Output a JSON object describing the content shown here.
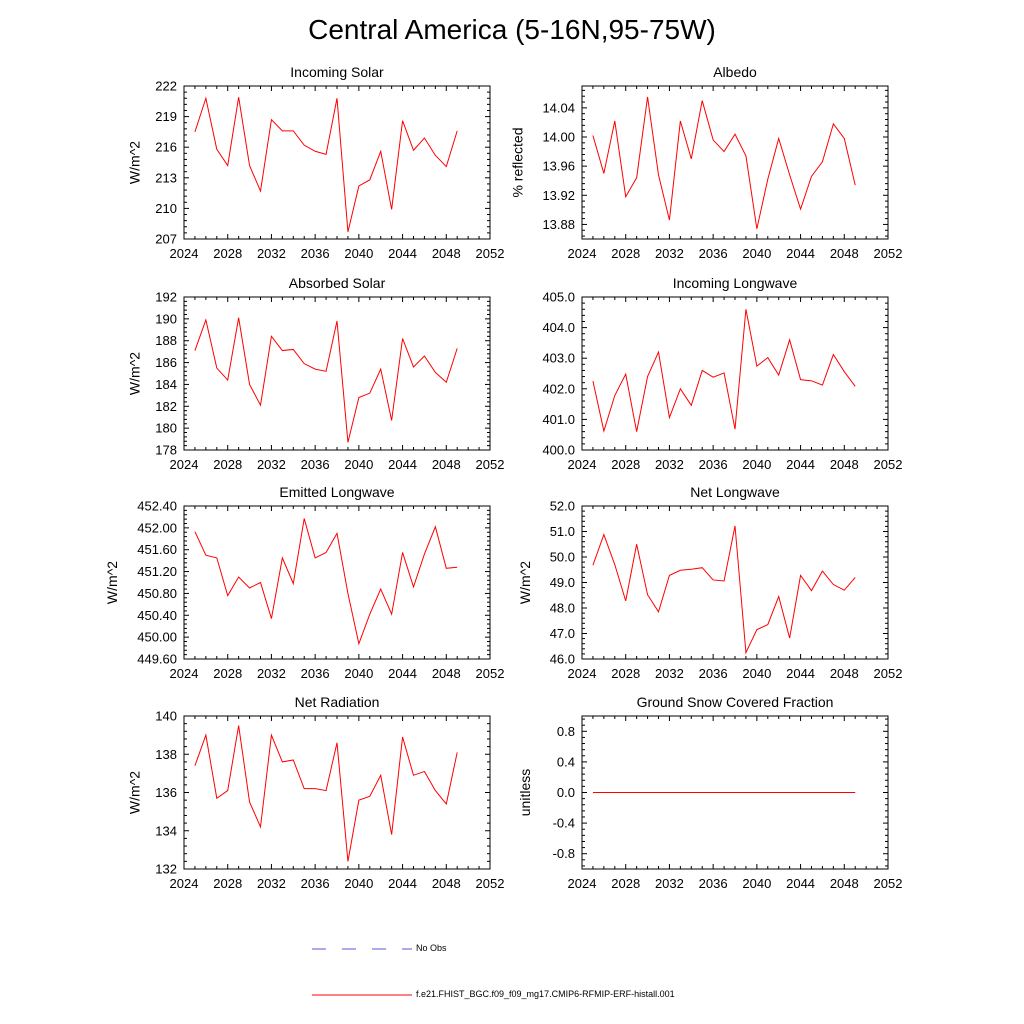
{
  "figure_title": "Central America (5-16N,95-75W)",
  "legend": {
    "obs_label": "No Obs",
    "model_label": "f.e21.FHIST_BGC.f09_f09_mg17.CMIP6-RFMIP-ERF-histall.001",
    "obs_color": "#5a5ad8",
    "model_color": "#ff0000"
  },
  "chart_data": [
    {
      "type": "line",
      "title": "Incoming Solar",
      "ylabel": "W/m^2",
      "xlim": [
        2024,
        2052
      ],
      "xticks": [
        "2024",
        "2028",
        "2032",
        "2036",
        "2040",
        "2044",
        "2048",
        "2052"
      ],
      "ylim": [
        207,
        222
      ],
      "yticks": [
        "207",
        "210",
        "213",
        "216",
        "219",
        "222"
      ],
      "x": [
        2025,
        2026,
        2027,
        2028,
        2029,
        2030,
        2031,
        2032,
        2033,
        2034,
        2035,
        2036,
        2037,
        2038,
        2039,
        2040,
        2041,
        2042,
        2043,
        2044,
        2045,
        2046,
        2047,
        2048,
        2049
      ],
      "series": [
        {
          "name": "f.e21.FHIST_BGC.f09_f09_mg17.CMIP6-RFMIP-ERF-histall.001",
          "values": [
            217.5,
            220.8,
            215.8,
            214.2,
            220.9,
            214.2,
            211.7,
            218.7,
            217.6,
            217.6,
            216.2,
            215.6,
            215.3,
            220.8,
            207.7,
            212.2,
            212.8,
            215.6,
            209.9,
            218.6,
            215.7,
            216.9,
            215.2,
            214.1,
            217.6
          ]
        }
      ]
    },
    {
      "type": "line",
      "title": "Albedo",
      "ylabel": "% reflected",
      "xlim": [
        2024,
        2052
      ],
      "xticks": [
        "2024",
        "2028",
        "2032",
        "2036",
        "2040",
        "2044",
        "2048",
        "2052"
      ],
      "ylim": [
        13.86,
        14.07
      ],
      "yticks": [
        "13.88",
        "13.92",
        "13.96",
        "14.00",
        "14.04"
      ],
      "x": [
        2025,
        2026,
        2027,
        2028,
        2029,
        2030,
        2031,
        2032,
        2033,
        2034,
        2035,
        2036,
        2037,
        2038,
        2039,
        2040,
        2041,
        2042,
        2043,
        2044,
        2045,
        2046,
        2047,
        2048,
        2049
      ],
      "series": [
        {
          "name": "f.e21.FHIST_BGC.f09_f09_mg17.CMIP6-RFMIP-ERF-histall.001",
          "values": [
            14.002,
            13.95,
            14.022,
            13.918,
            13.944,
            14.055,
            13.948,
            13.886,
            14.022,
            13.97,
            14.05,
            13.996,
            13.98,
            14.004,
            13.974,
            13.874,
            13.942,
            13.998,
            13.948,
            13.901,
            13.946,
            13.966,
            14.018,
            13.998,
            13.934
          ]
        }
      ]
    },
    {
      "type": "line",
      "title": "Absorbed Solar",
      "ylabel": "W/m^2",
      "xlim": [
        2024,
        2052
      ],
      "xticks": [
        "2024",
        "2028",
        "2032",
        "2036",
        "2040",
        "2044",
        "2048",
        "2052"
      ],
      "ylim": [
        178,
        192
      ],
      "yticks": [
        "178",
        "180",
        "182",
        "184",
        "186",
        "188",
        "190",
        "192"
      ],
      "x": [
        2025,
        2026,
        2027,
        2028,
        2029,
        2030,
        2031,
        2032,
        2033,
        2034,
        2035,
        2036,
        2037,
        2038,
        2039,
        2040,
        2041,
        2042,
        2043,
        2044,
        2045,
        2046,
        2047,
        2048,
        2049
      ],
      "series": [
        {
          "name": "f.e21.FHIST_BGC.f09_f09_mg17.CMIP6-RFMIP-ERF-histall.001",
          "values": [
            187.1,
            189.9,
            185.5,
            184.4,
            190.1,
            184.0,
            182.1,
            188.4,
            187.1,
            187.2,
            185.9,
            185.4,
            185.2,
            189.8,
            178.7,
            182.8,
            183.2,
            185.4,
            180.7,
            188.2,
            185.6,
            186.6,
            185.1,
            184.2,
            187.3
          ]
        }
      ]
    },
    {
      "type": "line",
      "title": "Incoming Longwave",
      "ylabel": "",
      "xlim": [
        2024,
        2052
      ],
      "xticks": [
        "2024",
        "2028",
        "2032",
        "2036",
        "2040",
        "2044",
        "2048",
        "2052"
      ],
      "ylim": [
        400.0,
        405.0
      ],
      "yticks": [
        "400.0",
        "401.0",
        "402.0",
        "403.0",
        "404.0",
        "405.0"
      ],
      "x": [
        2025,
        2026,
        2027,
        2028,
        2029,
        2030,
        2031,
        2032,
        2033,
        2034,
        2035,
        2036,
        2037,
        2038,
        2039,
        2040,
        2041,
        2042,
        2043,
        2044,
        2045,
        2046,
        2047,
        2048,
        2049
      ],
      "series": [
        {
          "name": "f.e21.FHIST_BGC.f09_f09_mg17.CMIP6-RFMIP-ERF-histall.001",
          "values": [
            402.25,
            400.62,
            401.78,
            402.48,
            400.6,
            402.4,
            403.2,
            401.06,
            402.0,
            401.46,
            402.6,
            402.38,
            402.52,
            400.68,
            404.6,
            402.74,
            403.02,
            402.45,
            403.6,
            402.3,
            402.26,
            402.12,
            403.12,
            402.56,
            402.08
          ]
        }
      ]
    },
    {
      "type": "line",
      "title": "Emitted Longwave",
      "ylabel": "W/m^2",
      "xlim": [
        2024,
        2052
      ],
      "xticks": [
        "2024",
        "2028",
        "2032",
        "2036",
        "2040",
        "2044",
        "2048",
        "2052"
      ],
      "ylim": [
        449.6,
        452.4
      ],
      "yticks": [
        "449.60",
        "450.00",
        "450.40",
        "450.80",
        "451.20",
        "451.60",
        "452.00",
        "452.40"
      ],
      "x": [
        2025,
        2026,
        2027,
        2028,
        2029,
        2030,
        2031,
        2032,
        2033,
        2034,
        2035,
        2036,
        2037,
        2038,
        2039,
        2040,
        2041,
        2042,
        2043,
        2044,
        2045,
        2046,
        2047,
        2048,
        2049
      ],
      "series": [
        {
          "name": "f.e21.FHIST_BGC.f09_f09_mg17.CMIP6-RFMIP-ERF-histall.001",
          "values": [
            451.93,
            451.5,
            451.45,
            450.76,
            451.1,
            450.9,
            451.0,
            450.34,
            451.45,
            450.98,
            452.17,
            451.45,
            451.55,
            451.9,
            450.8,
            449.88,
            450.42,
            450.88,
            450.42,
            451.55,
            450.92,
            451.52,
            452.02,
            451.26,
            451.28
          ]
        }
      ]
    },
    {
      "type": "line",
      "title": "Net Longwave",
      "ylabel": "W/m^2",
      "xlim": [
        2024,
        2052
      ],
      "xticks": [
        "2024",
        "2028",
        "2032",
        "2036",
        "2040",
        "2044",
        "2048",
        "2052"
      ],
      "ylim": [
        46.0,
        52.0
      ],
      "yticks": [
        "46.0",
        "47.0",
        "48.0",
        "49.0",
        "50.0",
        "51.0",
        "52.0"
      ],
      "x": [
        2025,
        2026,
        2027,
        2028,
        2029,
        2030,
        2031,
        2032,
        2033,
        2034,
        2035,
        2036,
        2037,
        2038,
        2039,
        2040,
        2041,
        2042,
        2043,
        2044,
        2045,
        2046,
        2047,
        2048,
        2049
      ],
      "series": [
        {
          "name": "f.e21.FHIST_BGC.f09_f09_mg17.CMIP6-RFMIP-ERF-histall.001",
          "values": [
            49.68,
            50.88,
            49.7,
            48.28,
            50.5,
            48.52,
            47.85,
            49.28,
            49.48,
            49.52,
            49.58,
            49.1,
            49.06,
            51.22,
            46.25,
            47.15,
            47.35,
            48.45,
            46.82,
            49.28,
            48.68,
            49.45,
            48.92,
            48.7,
            49.2
          ]
        }
      ]
    },
    {
      "type": "line",
      "title": "Net Radiation",
      "ylabel": "W/m^2",
      "xlim": [
        2024,
        2052
      ],
      "xticks": [
        "2024",
        "2028",
        "2032",
        "2036",
        "2040",
        "2044",
        "2048",
        "2052"
      ],
      "ylim": [
        132,
        140
      ],
      "yticks": [
        "132",
        "134",
        "136",
        "138",
        "140"
      ],
      "x": [
        2025,
        2026,
        2027,
        2028,
        2029,
        2030,
        2031,
        2032,
        2033,
        2034,
        2035,
        2036,
        2037,
        2038,
        2039,
        2040,
        2041,
        2042,
        2043,
        2044,
        2045,
        2046,
        2047,
        2048,
        2049
      ],
      "series": [
        {
          "name": "f.e21.FHIST_BGC.f09_f09_mg17.CMIP6-RFMIP-ERF-histall.001",
          "values": [
            137.4,
            139.0,
            135.7,
            136.1,
            139.5,
            135.5,
            134.2,
            139.0,
            137.6,
            137.7,
            136.2,
            136.2,
            136.1,
            138.6,
            132.4,
            135.6,
            135.8,
            136.9,
            133.8,
            138.9,
            136.9,
            137.1,
            136.1,
            135.4,
            138.1
          ]
        }
      ]
    },
    {
      "type": "line",
      "title": "Ground Snow Covered Fraction",
      "ylabel": "unitless",
      "xlim": [
        2024,
        2052
      ],
      "xticks": [
        "2024",
        "2028",
        "2032",
        "2036",
        "2040",
        "2044",
        "2048",
        "2052"
      ],
      "ylim": [
        -1.0,
        1.0
      ],
      "yticks": [
        "-0.8",
        "-0.4",
        "0.0",
        "0.4",
        "0.8"
      ],
      "x": [
        2025,
        2026,
        2027,
        2028,
        2029,
        2030,
        2031,
        2032,
        2033,
        2034,
        2035,
        2036,
        2037,
        2038,
        2039,
        2040,
        2041,
        2042,
        2043,
        2044,
        2045,
        2046,
        2047,
        2048,
        2049
      ],
      "series": [
        {
          "name": "f.e21.FHIST_BGC.f09_f09_mg17.CMIP6-RFMIP-ERF-histall.001",
          "values": [
            0,
            0,
            0,
            0,
            0,
            0,
            0,
            0,
            0,
            0,
            0,
            0,
            0,
            0,
            0,
            0,
            0,
            0,
            0,
            0,
            0,
            0,
            0,
            0,
            0
          ]
        }
      ]
    }
  ]
}
